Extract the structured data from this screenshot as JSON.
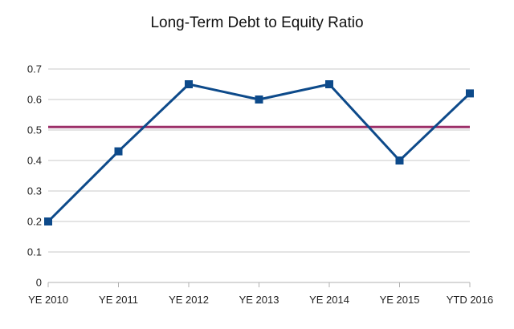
{
  "chart_data": {
    "type": "line",
    "title": "Long-Term Debt to Equity Ratio",
    "categories": [
      "YE 2010",
      "YE 2011",
      "YE 2012",
      "YE 2013",
      "YE 2014",
      "YE 2015",
      "YTD 2016"
    ],
    "series": [
      {
        "values": [
          0.2,
          0.43,
          0.65,
          0.6,
          0.65,
          0.4,
          0.62
        ],
        "color": "#0d4a8a",
        "marker": "square"
      },
      {
        "values": [
          0.51,
          0.51,
          0.51,
          0.51,
          0.51,
          0.51,
          0.51
        ],
        "color": "#9c2f68",
        "marker": "none"
      }
    ],
    "ylim": [
      0,
      0.7
    ],
    "yticks": [
      "0",
      "0.1",
      "0.2",
      "0.3",
      "0.4",
      "0.5",
      "0.6",
      "0.7"
    ],
    "grid": true,
    "legend": "none"
  }
}
